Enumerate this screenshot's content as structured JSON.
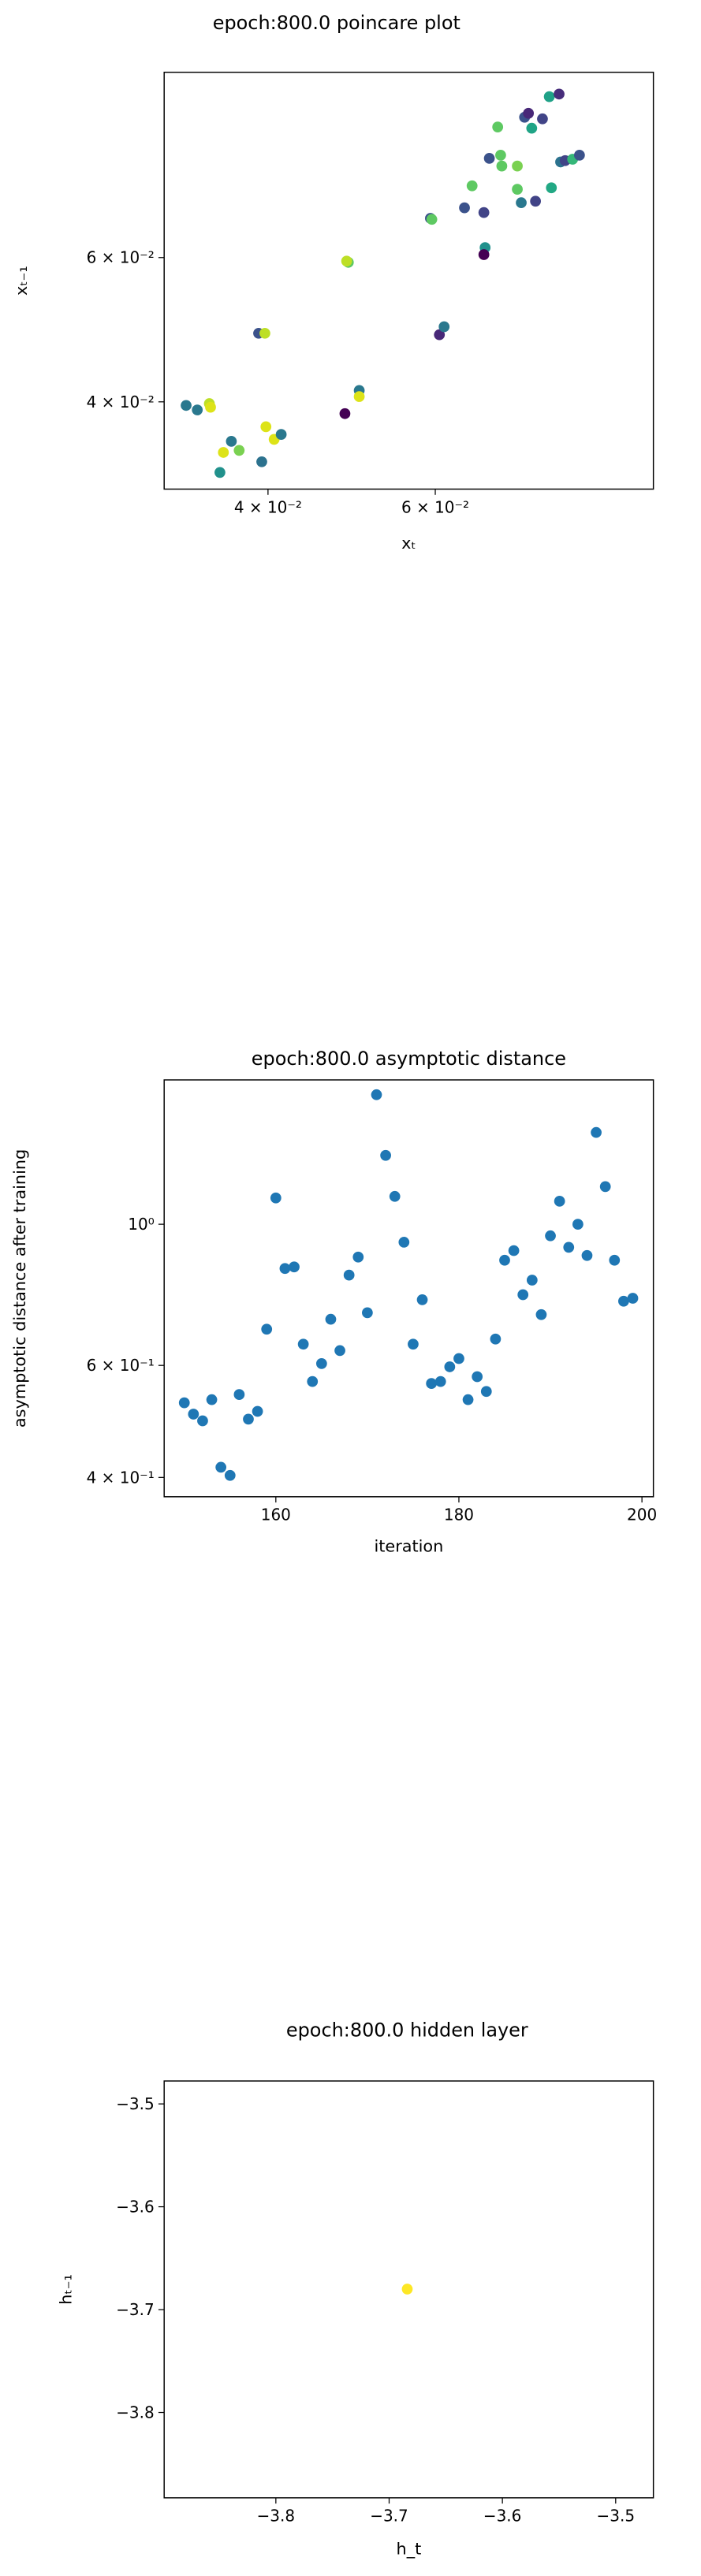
{
  "chart_data": [
    {
      "type": "scatter",
      "title": "epoch:800.0 poincare plot",
      "xlabel": "xₜ",
      "ylabel": "xₜ₋₁",
      "xscale": "log",
      "yscale": "log",
      "xlim": [
        0.0311,
        0.1018
      ],
      "ylim": [
        0.0313,
        0.101
      ],
      "xticks": [
        {
          "value": 0.04,
          "label": "4 × 10⁻²"
        },
        {
          "value": 0.06,
          "label": "6 × 10⁻²"
        }
      ],
      "yticks": [
        {
          "value": 0.04,
          "label": "4 × 10⁻²"
        },
        {
          "value": 0.06,
          "label": "6 × 10⁻²"
        }
      ],
      "x": [
        0.0328,
        0.0337,
        0.0347,
        0.0348,
        0.0366,
        0.0359,
        0.0373,
        0.0356,
        0.0394,
        0.0398,
        0.0406,
        0.0413,
        0.0391,
        0.0397,
        0.0482,
        0.0499,
        0.0499,
        0.0486,
        0.0484,
        0.0593,
        0.0595,
        0.0606,
        0.0613,
        0.0644,
        0.0656,
        0.0675,
        0.0677,
        0.0675,
        0.0684,
        0.0698,
        0.0703,
        0.0705,
        0.0732,
        0.0732,
        0.0739,
        0.0745,
        0.0752,
        0.0758,
        0.0765,
        0.0778,
        0.0791,
        0.0795,
        0.081,
        0.0813,
        0.0822,
        0.0837,
        0.0851
      ],
      "values": [
        0.0396,
        0.0391,
        0.0398,
        0.0394,
        0.0358,
        0.0347,
        0.0349,
        0.0328,
        0.0338,
        0.0373,
        0.036,
        0.0365,
        0.0485,
        0.0485,
        0.0387,
        0.0413,
        0.0406,
        0.0592,
        0.0594,
        0.067,
        0.0668,
        0.0483,
        0.0494,
        0.069,
        0.0734,
        0.0681,
        0.0617,
        0.0605,
        0.0793,
        0.0866,
        0.08,
        0.0776,
        0.0776,
        0.0727,
        0.07,
        0.089,
        0.09,
        0.0863,
        0.0703,
        0.0886,
        0.0943,
        0.073,
        0.095,
        0.0785,
        0.0788,
        0.0791,
        0.08
      ],
      "colors": [
        "#2a788e",
        "#2a788e",
        "#bddf26",
        "#dde318",
        "#2a788e",
        "#dde318",
        "#7ad151",
        "#21918c",
        "#2c728e",
        "#dde318",
        "#dde318",
        "#2a788e",
        "#3b528b",
        "#bddf26",
        "#440154",
        "#2a788e",
        "#dde318",
        "#5ec962",
        "#bddf26",
        "#3b528b",
        "#5ec962",
        "#482878",
        "#2a788e",
        "#3b528b",
        "#5ec962",
        "#414487",
        "#21918c",
        "#440154",
        "#3b528b",
        "#5ec962",
        "#5ec962",
        "#5ec962",
        "#7ad151",
        "#5ec962",
        "#2a788e",
        "#3b528b",
        "#482878",
        "#20a486",
        "#414487",
        "#414487",
        "#1fa187",
        "#22a884",
        "#472d7b",
        "#2c728e",
        "#414487",
        "#35b779",
        "#3b528b"
      ]
    },
    {
      "type": "scatter",
      "title": "epoch:800.0 asymptotic distance",
      "xlabel": "iteration",
      "ylabel": "asymptotic distance after training",
      "yscale": "log",
      "color": "#1f77b4",
      "xlim": [
        147.8,
        201.25
      ],
      "ylim": [
        0.373,
        1.686
      ],
      "xticks": [
        160,
        180,
        200
      ],
      "yticks": [
        {
          "value": 0.4,
          "label": "4 × 10⁻¹"
        },
        {
          "value": 0.6,
          "label": "6 × 10⁻¹"
        },
        {
          "value": 1,
          "label": "10⁰"
        }
      ],
      "x": [
        150,
        151,
        152,
        153,
        154,
        155,
        156,
        157,
        158,
        159,
        160,
        161,
        162,
        163,
        164,
        165,
        166,
        167,
        168,
        169,
        170,
        171,
        172,
        173,
        174,
        175,
        176,
        177,
        178,
        179,
        180,
        181,
        182,
        183,
        184,
        185,
        186,
        187,
        188,
        189,
        190,
        191,
        192,
        193,
        194,
        195,
        196,
        197,
        198,
        199
      ],
      "values": [
        0.524,
        0.503,
        0.491,
        0.53,
        0.415,
        0.403,
        0.54,
        0.494,
        0.508,
        0.684,
        1.1,
        0.852,
        0.857,
        0.648,
        0.566,
        0.604,
        0.709,
        0.633,
        0.832,
        0.888,
        0.726,
        1.598,
        1.283,
        1.106,
        0.937,
        0.648,
        0.761,
        0.562,
        0.566,
        0.597,
        0.615,
        0.53,
        0.576,
        0.546,
        0.66,
        0.878,
        0.909,
        0.775,
        0.817,
        0.721,
        0.959,
        1.087,
        0.92,
        1.0,
        0.893,
        1.394,
        1.146,
        0.878,
        0.757,
        0.765
      ]
    },
    {
      "type": "scatter",
      "title": "epoch:800.0 hidden layer",
      "xlabel": "h_t",
      "ylabel": "hₜ₋₁",
      "color": "#fde725",
      "xlim": [
        -3.8986,
        -3.4667
      ],
      "ylim": [
        -3.883,
        -3.4777
      ],
      "xticks": [
        {
          "value": -3.8,
          "label": "−3.8"
        },
        {
          "value": -3.7,
          "label": "−3.7"
        },
        {
          "value": -3.6,
          "label": "−3.6"
        },
        {
          "value": -3.5,
          "label": "−3.5"
        }
      ],
      "yticks": [
        {
          "value": -3.8,
          "label": "−3.8"
        },
        {
          "value": -3.7,
          "label": "−3.7"
        },
        {
          "value": -3.6,
          "label": "−3.6"
        },
        {
          "value": -3.5,
          "label": "−3.5"
        }
      ],
      "x": [
        -3.684
      ],
      "values": [
        -3.68
      ]
    }
  ]
}
